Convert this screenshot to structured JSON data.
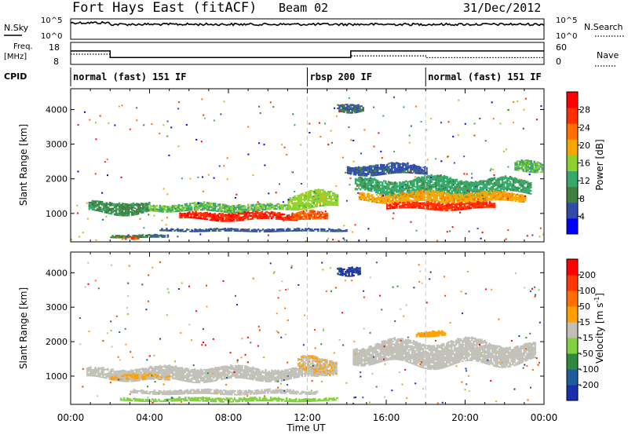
{
  "header": {
    "site": "Fort Hays East (fitACF)",
    "beam": "Beam 02",
    "date": "31/Dec/2012"
  },
  "top_panels": {
    "nsky_label": "N.Sky",
    "nsky_ticks": [
      "10^5",
      "10^0"
    ],
    "nsearch_label": "N.Search",
    "nsearch_ticks": [
      "10^5",
      "10^0"
    ],
    "freq_label": "Freq.",
    "freq_unit": "[MHz]",
    "freq_ticks": [
      "18",
      "8"
    ],
    "nave_label": "Nave",
    "nave_ticks": [
      "60",
      "0"
    ],
    "cpid_label": "CPID",
    "cpid_segments": [
      {
        "label": "normal (fast) 151 IF",
        "start_h": 0,
        "end_h": 12
      },
      {
        "label": "rbsp 200 IF",
        "start_h": 12,
        "end_h": 18
      },
      {
        "label": "normal (fast) 151 IF",
        "start_h": 18,
        "end_h": 24
      }
    ],
    "freq_steps": [
      {
        "start_h": 0,
        "end_h": 2,
        "freq": 14.3
      },
      {
        "start_h": 2,
        "end_h": 14.2,
        "freq": 10.8
      },
      {
        "start_h": 14.2,
        "end_h": 24,
        "freq": 14.3
      }
    ],
    "nave_steps": [
      {
        "start_h": 0,
        "end_h": 2,
        "nave": 30
      },
      {
        "start_h": 2,
        "end_h": 12,
        "nave": 18
      },
      {
        "start_h": 12,
        "end_h": 14.2,
        "nave": 18
      },
      {
        "start_h": 14.2,
        "end_h": 18,
        "nave": 24
      },
      {
        "start_h": 18,
        "end_h": 24,
        "nave": 18
      }
    ]
  },
  "colors": {
    "power": [
      "#0000ff",
      "#304ba8",
      "#3f7f3f",
      "#35a86a",
      "#8fd12c",
      "#f5a800",
      "#ff7000",
      "#ff3000",
      "#ff0000"
    ],
    "velocity": [
      "#1a2fae",
      "#1f5c9a",
      "#2d8a3e",
      "#7fd13f",
      "#c0c0b8",
      "#ffa000",
      "#ff7000",
      "#ff3800",
      "#ff0000"
    ]
  },
  "chart_data": [
    {
      "type": "heatmap",
      "title": "Power",
      "xlabel": "Time UT",
      "ylabel": "Slant Range [km]",
      "xlim": [
        0,
        24
      ],
      "ylim": [
        180,
        4600
      ],
      "x_ticks": [
        "00:00",
        "04:00",
        "08:00",
        "12:00",
        "16:00",
        "20:00",
        "00:00"
      ],
      "y_ticks": [
        "1000",
        "2000",
        "3000",
        "4000"
      ],
      "colorbar_label": "Power [dB]",
      "colorbar_ticks": [
        "28",
        "24",
        "20",
        "16",
        "12",
        "8",
        "4"
      ],
      "colorbar_range": [
        0,
        32
      ],
      "bands": [
        {
          "start_h": 0.9,
          "end_h": 4.0,
          "center_km": 1150,
          "width_km": 350,
          "value": 10
        },
        {
          "start_h": 2.0,
          "end_h": 5.0,
          "center_km": 320,
          "width_km": 70,
          "value": 8
        },
        {
          "start_h": 2.5,
          "end_h": 3.4,
          "center_km": 260,
          "width_km": 60,
          "value": 26
        },
        {
          "start_h": 4.0,
          "end_h": 11.0,
          "center_km": 1150,
          "width_km": 220,
          "value": 14
        },
        {
          "start_h": 5.5,
          "end_h": 11.5,
          "center_km": 900,
          "width_km": 220,
          "value": 28
        },
        {
          "start_h": 11.0,
          "end_h": 13.5,
          "center_km": 1350,
          "width_km": 500,
          "value": 16
        },
        {
          "start_h": 11.2,
          "end_h": 13.0,
          "center_km": 900,
          "width_km": 250,
          "value": 24
        },
        {
          "start_h": 4.5,
          "end_h": 14.0,
          "center_km": 500,
          "width_km": 70,
          "value": 6
        },
        {
          "start_h": 14.4,
          "end_h": 23.3,
          "center_km": 1750,
          "width_km": 500,
          "value": 12
        },
        {
          "start_h": 14.6,
          "end_h": 23.0,
          "center_km": 1450,
          "width_km": 300,
          "value": 20
        },
        {
          "start_h": 16.0,
          "end_h": 21.5,
          "center_km": 1200,
          "width_km": 200,
          "value": 27
        },
        {
          "start_h": 14.0,
          "end_h": 18.0,
          "center_km": 2250,
          "width_km": 300,
          "value": 6
        },
        {
          "start_h": 13.5,
          "end_h": 14.8,
          "center_km": 4050,
          "width_km": 250,
          "value": 7
        },
        {
          "start_h": 22.5,
          "end_h": 23.9,
          "center_km": 2300,
          "width_km": 350,
          "value": 14
        }
      ]
    },
    {
      "type": "heatmap",
      "title": "Velocity",
      "xlabel": "Time UT",
      "ylabel": "Slant Range [km]",
      "xlim": [
        0,
        24
      ],
      "ylim": [
        180,
        4600
      ],
      "x_ticks": [
        "00:00",
        "04:00",
        "08:00",
        "12:00",
        "16:00",
        "20:00",
        "00:00"
      ],
      "y_ticks": [
        "1000",
        "2000",
        "3000",
        "4000"
      ],
      "colorbar_label": "Velocity [m s",
      "colorbar_unit_exp": "-1",
      "colorbar_ticks": [
        "200",
        "100",
        "50",
        "15",
        "-15",
        "-50",
        "-100",
        "-200"
      ],
      "colorbar_range": [
        -250,
        250
      ],
      "bands": [
        {
          "start_h": 0.8,
          "end_h": 12.5,
          "center_km": 1050,
          "width_km": 380,
          "value": 0
        },
        {
          "start_h": 11.5,
          "end_h": 13.5,
          "center_km": 1300,
          "width_km": 500,
          "value": 25
        },
        {
          "start_h": 2.0,
          "end_h": 5.0,
          "center_km": 950,
          "width_km": 150,
          "value": 30
        },
        {
          "start_h": 3.0,
          "end_h": 12.5,
          "center_km": 520,
          "width_km": 120,
          "value": 0
        },
        {
          "start_h": 2.5,
          "end_h": 13.5,
          "center_km": 300,
          "width_km": 100,
          "value": -60
        },
        {
          "start_h": 14.3,
          "end_h": 23.5,
          "center_km": 1650,
          "width_km": 700,
          "value": 0
        },
        {
          "start_h": 13.5,
          "end_h": 14.7,
          "center_km": 4050,
          "width_km": 250,
          "value": -200
        },
        {
          "start_h": 17.5,
          "end_h": 19.0,
          "center_km": 2200,
          "width_km": 150,
          "value": 60
        }
      ]
    }
  ]
}
